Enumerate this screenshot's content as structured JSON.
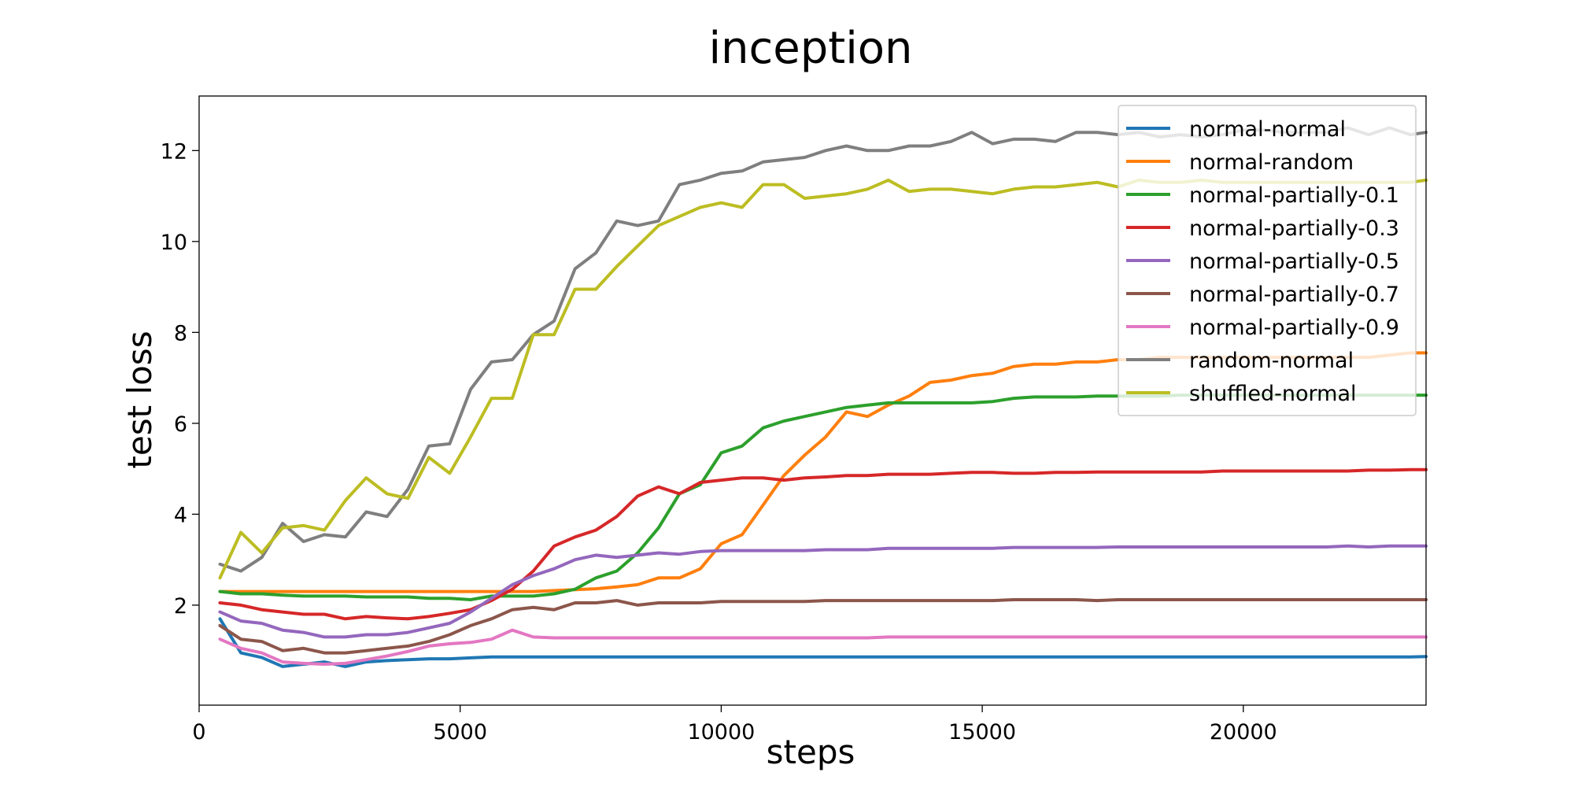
{
  "chart_data": {
    "type": "line",
    "title": "inception",
    "xlabel": "steps",
    "ylabel": "test loss",
    "xlim": [
      0,
      23500
    ],
    "ylim": [
      -0.2,
      13.2
    ],
    "xticks": [
      0,
      5000,
      10000,
      15000,
      20000
    ],
    "yticks": [
      2,
      4,
      6,
      8,
      10,
      12
    ],
    "grid": false,
    "legend_position": "top-right",
    "x": [
      400,
      800,
      1200,
      1600,
      2000,
      2400,
      2800,
      3200,
      3600,
      4000,
      4400,
      4800,
      5200,
      5600,
      6000,
      6400,
      6800,
      7200,
      7600,
      8000,
      8400,
      8800,
      9200,
      9600,
      10000,
      10400,
      10800,
      11200,
      11600,
      12000,
      12400,
      12800,
      13200,
      13600,
      14000,
      14400,
      14800,
      15200,
      15600,
      16000,
      16400,
      16800,
      17200,
      17600,
      18000,
      18400,
      18800,
      19200,
      19600,
      20000,
      20400,
      20800,
      21200,
      21600,
      22000,
      22400,
      22800,
      23200,
      23500
    ],
    "series": [
      {
        "name": "normal-normal",
        "color": "#1f77b4",
        "values": [
          1.7,
          0.95,
          0.85,
          0.65,
          0.7,
          0.75,
          0.65,
          0.75,
          0.78,
          0.8,
          0.82,
          0.82,
          0.84,
          0.86,
          0.86,
          0.86,
          0.86,
          0.86,
          0.86,
          0.86,
          0.86,
          0.86,
          0.86,
          0.86,
          0.86,
          0.86,
          0.86,
          0.86,
          0.86,
          0.86,
          0.86,
          0.86,
          0.86,
          0.86,
          0.86,
          0.86,
          0.86,
          0.86,
          0.86,
          0.86,
          0.86,
          0.86,
          0.86,
          0.86,
          0.86,
          0.86,
          0.86,
          0.86,
          0.86,
          0.86,
          0.86,
          0.86,
          0.86,
          0.86,
          0.86,
          0.86,
          0.86,
          0.86,
          0.87
        ]
      },
      {
        "name": "normal-random",
        "color": "#ff7f0e",
        "values": [
          2.3,
          2.3,
          2.3,
          2.3,
          2.3,
          2.3,
          2.3,
          2.3,
          2.3,
          2.3,
          2.3,
          2.3,
          2.3,
          2.3,
          2.3,
          2.3,
          2.32,
          2.34,
          2.36,
          2.4,
          2.45,
          2.6,
          2.6,
          2.8,
          3.35,
          3.55,
          4.2,
          4.85,
          5.3,
          5.7,
          6.25,
          6.15,
          6.4,
          6.6,
          6.9,
          6.95,
          7.05,
          7.1,
          7.25,
          7.3,
          7.3,
          7.35,
          7.35,
          7.4,
          7.4,
          7.45,
          7.45,
          7.45,
          7.45,
          7.45,
          7.45,
          7.45,
          7.45,
          7.45,
          7.45,
          7.45,
          7.5,
          7.55,
          7.55
        ]
      },
      {
        "name": "normal-partially-0.1",
        "color": "#2ca02c",
        "values": [
          2.3,
          2.25,
          2.25,
          2.22,
          2.2,
          2.2,
          2.2,
          2.18,
          2.18,
          2.18,
          2.15,
          2.15,
          2.12,
          2.2,
          2.2,
          2.2,
          2.25,
          2.35,
          2.6,
          2.75,
          3.15,
          3.7,
          4.45,
          4.65,
          5.35,
          5.5,
          5.9,
          6.05,
          6.15,
          6.25,
          6.35,
          6.4,
          6.45,
          6.45,
          6.45,
          6.45,
          6.45,
          6.48,
          6.55,
          6.58,
          6.58,
          6.58,
          6.6,
          6.6,
          6.6,
          6.6,
          6.62,
          6.62,
          6.62,
          6.62,
          6.62,
          6.62,
          6.62,
          6.62,
          6.62,
          6.62,
          6.62,
          6.62,
          6.62
        ]
      },
      {
        "name": "normal-partially-0.3",
        "color": "#d62728",
        "values": [
          2.05,
          2.0,
          1.9,
          1.85,
          1.8,
          1.8,
          1.7,
          1.75,
          1.72,
          1.7,
          1.75,
          1.82,
          1.9,
          2.1,
          2.35,
          2.75,
          3.3,
          3.5,
          3.65,
          3.95,
          4.4,
          4.6,
          4.45,
          4.7,
          4.75,
          4.8,
          4.8,
          4.75,
          4.8,
          4.82,
          4.85,
          4.85,
          4.88,
          4.88,
          4.88,
          4.9,
          4.92,
          4.92,
          4.9,
          4.9,
          4.92,
          4.92,
          4.93,
          4.93,
          4.93,
          4.93,
          4.93,
          4.93,
          4.95,
          4.95,
          4.95,
          4.95,
          4.95,
          4.95,
          4.95,
          4.97,
          4.97,
          4.98,
          4.98
        ]
      },
      {
        "name": "normal-partially-0.5",
        "color": "#9467bd",
        "values": [
          1.85,
          1.65,
          1.6,
          1.45,
          1.4,
          1.3,
          1.3,
          1.35,
          1.35,
          1.4,
          1.5,
          1.6,
          1.85,
          2.15,
          2.45,
          2.65,
          2.8,
          3.0,
          3.1,
          3.05,
          3.1,
          3.15,
          3.12,
          3.18,
          3.2,
          3.2,
          3.2,
          3.2,
          3.2,
          3.22,
          3.22,
          3.22,
          3.25,
          3.25,
          3.25,
          3.25,
          3.25,
          3.25,
          3.27,
          3.27,
          3.27,
          3.27,
          3.27,
          3.28,
          3.28,
          3.28,
          3.28,
          3.28,
          3.28,
          3.28,
          3.28,
          3.28,
          3.28,
          3.28,
          3.3,
          3.28,
          3.3,
          3.3,
          3.3
        ]
      },
      {
        "name": "normal-partially-0.7",
        "color": "#8c564b",
        "values": [
          1.55,
          1.25,
          1.2,
          1.0,
          1.05,
          0.95,
          0.95,
          1.0,
          1.05,
          1.1,
          1.2,
          1.35,
          1.55,
          1.7,
          1.9,
          1.95,
          1.9,
          2.05,
          2.05,
          2.1,
          2.0,
          2.05,
          2.05,
          2.05,
          2.08,
          2.08,
          2.08,
          2.08,
          2.08,
          2.1,
          2.1,
          2.1,
          2.1,
          2.1,
          2.1,
          2.1,
          2.1,
          2.1,
          2.12,
          2.12,
          2.12,
          2.12,
          2.1,
          2.12,
          2.12,
          2.12,
          2.12,
          2.12,
          2.12,
          2.12,
          2.12,
          2.12,
          2.12,
          2.12,
          2.12,
          2.12,
          2.12,
          2.12,
          2.12
        ]
      },
      {
        "name": "normal-partially-0.9",
        "color": "#e377c2",
        "values": [
          1.25,
          1.05,
          0.95,
          0.75,
          0.72,
          0.7,
          0.72,
          0.8,
          0.88,
          0.98,
          1.1,
          1.15,
          1.18,
          1.25,
          1.45,
          1.3,
          1.28,
          1.28,
          1.28,
          1.28,
          1.28,
          1.28,
          1.28,
          1.28,
          1.28,
          1.28,
          1.28,
          1.28,
          1.28,
          1.28,
          1.28,
          1.28,
          1.3,
          1.3,
          1.3,
          1.3,
          1.3,
          1.3,
          1.3,
          1.3,
          1.3,
          1.3,
          1.3,
          1.3,
          1.3,
          1.3,
          1.3,
          1.3,
          1.3,
          1.3,
          1.3,
          1.3,
          1.3,
          1.3,
          1.3,
          1.3,
          1.3,
          1.3,
          1.3
        ]
      },
      {
        "name": "random-normal",
        "color": "#7f7f7f",
        "values": [
          2.9,
          2.75,
          3.05,
          3.8,
          3.4,
          3.55,
          3.5,
          4.05,
          3.95,
          4.55,
          5.5,
          5.55,
          6.75,
          7.35,
          7.4,
          7.95,
          8.25,
          9.4,
          9.75,
          10.45,
          10.35,
          10.45,
          11.25,
          11.35,
          11.5,
          11.55,
          11.75,
          11.8,
          11.85,
          12.0,
          12.1,
          12.0,
          12.0,
          12.1,
          12.1,
          12.2,
          12.4,
          12.15,
          12.25,
          12.25,
          12.2,
          12.4,
          12.4,
          12.35,
          12.4,
          12.3,
          12.35,
          12.3,
          12.35,
          12.45,
          12.45,
          12.4,
          12.4,
          12.4,
          12.5,
          12.35,
          12.5,
          12.35,
          12.4
        ]
      },
      {
        "name": "shuffled-normal",
        "color": "#bcbd22",
        "values": [
          2.6,
          3.6,
          3.15,
          3.7,
          3.75,
          3.65,
          4.3,
          4.8,
          4.45,
          4.35,
          5.25,
          4.9,
          5.7,
          6.55,
          6.55,
          7.95,
          7.95,
          8.95,
          8.95,
          9.45,
          9.9,
          10.35,
          10.55,
          10.75,
          10.85,
          10.75,
          11.25,
          11.25,
          10.95,
          11.0,
          11.05,
          11.15,
          11.35,
          11.1,
          11.15,
          11.15,
          11.1,
          11.05,
          11.15,
          11.2,
          11.2,
          11.25,
          11.3,
          11.2,
          11.35,
          11.3,
          11.3,
          11.35,
          11.3,
          11.3,
          11.3,
          11.3,
          11.3,
          11.3,
          11.3,
          11.3,
          11.3,
          11.3,
          11.35
        ]
      }
    ]
  }
}
